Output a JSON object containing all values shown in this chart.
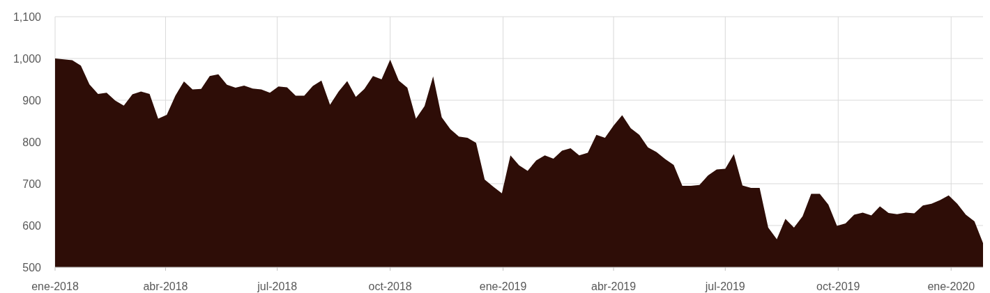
{
  "chart_data": {
    "type": "area",
    "x": [
      "2018-01-01",
      "2018-01-08",
      "2018-01-15",
      "2018-01-22",
      "2018-01-29",
      "2018-02-05",
      "2018-02-12",
      "2018-02-19",
      "2018-02-26",
      "2018-03-05",
      "2018-03-12",
      "2018-03-19",
      "2018-03-26",
      "2018-04-02",
      "2018-04-09",
      "2018-04-16",
      "2018-04-23",
      "2018-04-30",
      "2018-05-07",
      "2018-05-14",
      "2018-05-21",
      "2018-05-28",
      "2018-06-04",
      "2018-06-11",
      "2018-06-18",
      "2018-06-25",
      "2018-07-02",
      "2018-07-09",
      "2018-07-16",
      "2018-07-23",
      "2018-07-30",
      "2018-08-06",
      "2018-08-13",
      "2018-08-20",
      "2018-08-27",
      "2018-09-03",
      "2018-09-10",
      "2018-09-17",
      "2018-09-24",
      "2018-10-01",
      "2018-10-08",
      "2018-10-15",
      "2018-10-22",
      "2018-10-29",
      "2018-11-05",
      "2018-11-12",
      "2018-11-19",
      "2018-11-26",
      "2018-12-03",
      "2018-12-10",
      "2018-12-17",
      "2018-12-24",
      "2018-12-31",
      "2019-01-07",
      "2019-01-14",
      "2019-01-21",
      "2019-01-28",
      "2019-02-04",
      "2019-02-11",
      "2019-02-18",
      "2019-02-25",
      "2019-03-04",
      "2019-03-11",
      "2019-03-18",
      "2019-03-25",
      "2019-04-01",
      "2019-04-08",
      "2019-04-15",
      "2019-04-22",
      "2019-04-29",
      "2019-05-06",
      "2019-05-13",
      "2019-05-20",
      "2019-05-27",
      "2019-06-03",
      "2019-06-10",
      "2019-06-17",
      "2019-06-24",
      "2019-07-01",
      "2019-07-08",
      "2019-07-15",
      "2019-07-22",
      "2019-07-29",
      "2019-08-05",
      "2019-08-12",
      "2019-08-19",
      "2019-08-26",
      "2019-09-02",
      "2019-09-09",
      "2019-09-16",
      "2019-09-23",
      "2019-09-30",
      "2019-10-07",
      "2019-10-14",
      "2019-10-21",
      "2019-10-28",
      "2019-11-04",
      "2019-11-11",
      "2019-11-18",
      "2019-11-25",
      "2019-12-02",
      "2019-12-09",
      "2019-12-16",
      "2019-12-23",
      "2019-12-30",
      "2020-01-06",
      "2020-01-13",
      "2020-01-20",
      "2020-01-27"
    ],
    "series": [
      {
        "color": "#2e0d07",
        "values": [
          1000,
          998,
          996,
          983,
          938,
          915,
          918,
          899,
          887,
          914,
          921,
          915,
          856,
          865,
          911,
          945,
          926,
          927,
          958,
          962,
          937,
          930,
          935,
          928,
          926,
          918,
          933,
          931,
          911,
          911,
          934,
          947,
          889,
          921,
          946,
          908,
          927,
          958,
          950,
          997,
          947,
          930,
          856,
          886,
          957,
          859,
          831,
          813,
          810,
          798,
          710,
          693,
          677,
          768,
          744,
          731,
          756,
          768,
          760,
          779,
          785,
          768,
          774,
          817,
          810,
          839,
          864,
          833,
          817,
          787,
          776,
          759,
          745,
          695,
          695,
          697,
          720,
          734,
          736,
          771,
          696,
          690,
          690,
          595,
          567,
          616,
          595,
          622,
          676,
          676,
          650,
          599,
          605,
          626,
          631,
          624,
          646,
          630,
          627,
          631,
          629,
          648,
          652,
          661,
          672,
          652,
          626,
          610,
          558
        ]
      }
    ],
    "xlim": [
      "2018-01-01",
      "2020-01-27"
    ],
    "xticks": [
      {
        "value": "2018-01-01",
        "label": "ene-2018"
      },
      {
        "value": "2018-04-01",
        "label": "abr-2018"
      },
      {
        "value": "2018-07-01",
        "label": "jul-2018"
      },
      {
        "value": "2018-10-01",
        "label": "oct-2018"
      },
      {
        "value": "2019-01-01",
        "label": "ene-2019"
      },
      {
        "value": "2019-04-01",
        "label": "abr-2019"
      },
      {
        "value": "2019-07-01",
        "label": "jul-2019"
      },
      {
        "value": "2019-10-01",
        "label": "oct-2019"
      },
      {
        "value": "2020-01-01",
        "label": "ene-2020"
      }
    ],
    "ylim": [
      500,
      1100
    ],
    "yticks": [
      500,
      600,
      700,
      800,
      900,
      {
        "value": 1000,
        "label": "1,000"
      },
      {
        "value": 1100,
        "label": "1,100"
      }
    ],
    "grid": true
  }
}
